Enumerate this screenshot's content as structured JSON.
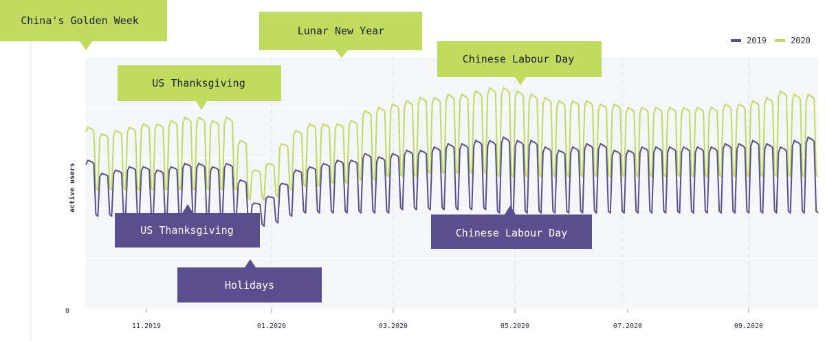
{
  "chart_data": {
    "type": "line",
    "title": "",
    "xlabel": "",
    "ylabel": "active users",
    "y_tick_labels": [
      "0"
    ],
    "x_tick_labels": [
      "11.2019",
      "01.2020",
      "03.2020",
      "05.2020",
      "07.2020",
      "09.2020"
    ],
    "x_range": [
      "10.2019",
      "10.2020"
    ],
    "grid": true,
    "legend_position": "top-right",
    "series": [
      {
        "name": "2019",
        "color": "#5b4e8f",
        "weekly_peaks": [
          45,
          41,
          42,
          43,
          43,
          42,
          43,
          44,
          44,
          43,
          44,
          39,
          32,
          34,
          38,
          42,
          43,
          44,
          45,
          45,
          47,
          46,
          47,
          48,
          48,
          49,
          50,
          50,
          51,
          51,
          52,
          51,
          51,
          49,
          48,
          49,
          50,
          50,
          48,
          48,
          49,
          49,
          49,
          49,
          49,
          49,
          50,
          50,
          51,
          50,
          49,
          51,
          52
        ],
        "weekly_troughs": [
          28,
          28,
          28,
          28,
          28,
          28,
          28,
          28,
          28,
          28,
          28,
          25,
          25,
          26,
          28,
          29,
          29,
          29,
          29,
          29,
          29,
          29,
          30,
          30,
          30,
          30,
          30,
          30,
          30,
          29,
          29,
          29,
          29,
          29,
          29,
          29,
          29,
          29,
          29,
          29,
          29,
          29,
          29,
          29,
          29,
          29,
          29,
          29,
          29,
          29,
          29,
          29,
          29
        ]
      },
      {
        "name": "2020",
        "color": "#bfdc5f",
        "weekly_peaks": [
          55,
          53,
          54,
          55,
          56,
          56,
          57,
          58,
          58,
          57,
          58,
          51,
          42,
          44,
          50,
          54,
          56,
          56,
          56,
          57,
          60,
          61,
          62,
          63,
          64,
          64,
          65,
          65,
          66,
          67,
          67,
          66,
          65,
          64,
          63,
          63,
          63,
          62,
          62,
          61,
          61,
          61,
          61,
          61,
          61,
          61,
          62,
          62,
          63,
          64,
          66,
          65,
          65
        ],
        "weekly_troughs": [
          36,
          36,
          36,
          36,
          36,
          36,
          36,
          36,
          36,
          36,
          36,
          33,
          33,
          34,
          36,
          37,
          37,
          38,
          38,
          39,
          39,
          40,
          40,
          40,
          41,
          41,
          41,
          41,
          41,
          40,
          40,
          40,
          40,
          40,
          40,
          40,
          40,
          40,
          40,
          40,
          40,
          40,
          40,
          40,
          40,
          40,
          40,
          40,
          40,
          40,
          40,
          40,
          40
        ]
      }
    ],
    "annotations": [
      {
        "text": "China's Golden Week",
        "series": "2020"
      },
      {
        "text": "Lunar New Year",
        "series": "2020"
      },
      {
        "text": "US Thanksgiving",
        "series": "2020"
      },
      {
        "text": "Chinese Labour Day",
        "series": "2020"
      },
      {
        "text": "US Thanksgiving",
        "series": "2019"
      },
      {
        "text": "Chinese Labour Day",
        "series": "2019"
      },
      {
        "text": "Holidays",
        "series": "2019"
      }
    ]
  }
}
